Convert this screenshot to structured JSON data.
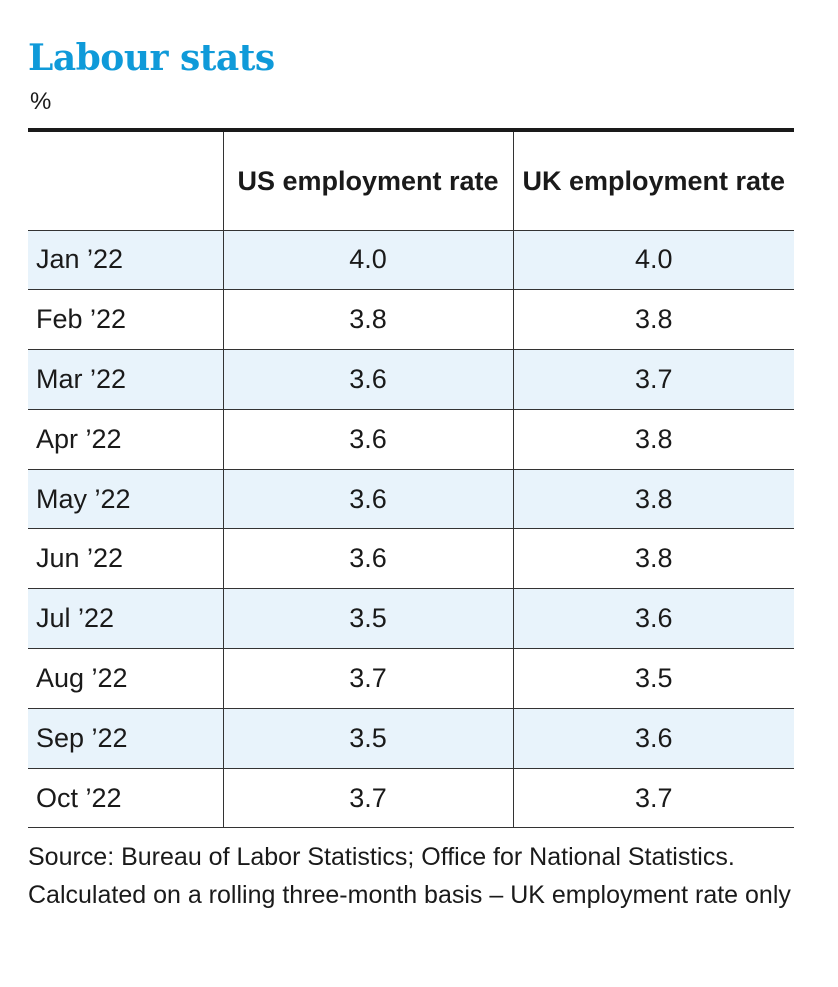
{
  "chart_data": {
    "type": "table",
    "title": "Labour stats",
    "unit": "%",
    "columns": [
      "",
      "US employment rate",
      "UK employment rate"
    ],
    "rows": [
      {
        "month": "Jan ’22",
        "us": "4.0",
        "uk": "4.0"
      },
      {
        "month": "Feb ’22",
        "us": "3.8",
        "uk": "3.8"
      },
      {
        "month": "Mar ’22",
        "us": "3.6",
        "uk": "3.7"
      },
      {
        "month": "Apr ’22",
        "us": "3.6",
        "uk": "3.8"
      },
      {
        "month": "May ’22",
        "us": "3.6",
        "uk": "3.8"
      },
      {
        "month": "Jun ’22",
        "us": "3.6",
        "uk": "3.8"
      },
      {
        "month": "Jul ’22",
        "us": "3.5",
        "uk": "3.6"
      },
      {
        "month": "Aug ’22",
        "us": "3.7",
        "uk": "3.5"
      },
      {
        "month": "Sep ’22",
        "us": "3.5",
        "uk": "3.6"
      },
      {
        "month": "Oct ’22",
        "us": "3.7",
        "uk": "3.7"
      }
    ],
    "source": "Source: Bureau of Labor Statistics; Office for National Statistics. Calculated on a rolling three-month basis – UK employment rate only"
  },
  "colors": {
    "title": "#0f9ad9",
    "row_shade": "#e8f3fb",
    "rule": "#1a1a1a"
  }
}
